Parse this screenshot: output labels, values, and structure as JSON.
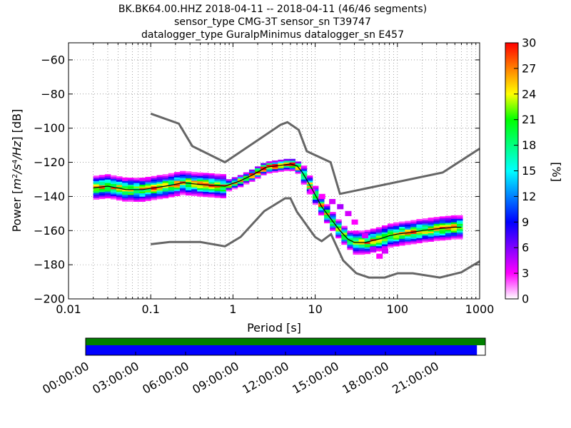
{
  "title": {
    "line1": "BK.BK64.00.HHZ   2018-04-11 -- 2018-04-11  (46/46 segments)",
    "line2": "sensor_type CMG-3T sensor_sn T39747",
    "line3": "datalogger_type GuralpMinimus datalogger_sn E457"
  },
  "colors": {
    "background": "#ffffff",
    "nhnm_nlnm": "#666666",
    "mode_line": "#000000",
    "coverage_green": "#007f00",
    "coverage_blue": "#0000ff"
  },
  "chart_data": {
    "type": "heatmap",
    "xlabel": "Period [s]",
    "ylabel": "Power [m²/s⁴/Hz] [dB]",
    "xscale": "log",
    "xlim": [
      0.01,
      1000
    ],
    "ylim": [
      -200,
      -50
    ],
    "xticks": [
      {
        "v": 0.01,
        "label": "0.01"
      },
      {
        "v": 0.1,
        "label": "0.1"
      },
      {
        "v": 1,
        "label": "1"
      },
      {
        "v": 10,
        "label": "10"
      },
      {
        "v": 100,
        "label": "100"
      },
      {
        "v": 1000,
        "label": "1000"
      }
    ],
    "yticks": [
      -200,
      -180,
      -160,
      -140,
      -120,
      -100,
      -80,
      -60
    ],
    "grid": "dotted",
    "colorbar": {
      "label": "[%]",
      "min": 0,
      "max": 30,
      "ticks": [
        0,
        3,
        6,
        9,
        12,
        15,
        18,
        21,
        24,
        27,
        30
      ]
    },
    "nhnm": [
      [
        0.1,
        -91.5
      ],
      [
        0.22,
        -97.4
      ],
      [
        0.32,
        -110.5
      ],
      [
        0.8,
        -120
      ],
      [
        3.8,
        -98
      ],
      [
        4.6,
        -96.5
      ],
      [
        6.3,
        -101
      ],
      [
        7.9,
        -113.5
      ],
      [
        15.4,
        -120
      ],
      [
        20,
        -138.5
      ],
      [
        354.8,
        -126
      ],
      [
        1000,
        -112
      ]
    ],
    "nlnm": [
      [
        0.1,
        -168
      ],
      [
        0.17,
        -166.7
      ],
      [
        0.4,
        -166.7
      ],
      [
        0.8,
        -169.2
      ],
      [
        1.24,
        -163.7
      ],
      [
        2.4,
        -148.6
      ],
      [
        4.3,
        -141.1
      ],
      [
        5,
        -141.1
      ],
      [
        6,
        -149
      ],
      [
        10,
        -163.8
      ],
      [
        12,
        -166.2
      ],
      [
        15.6,
        -162.1
      ],
      [
        21.9,
        -177.5
      ],
      [
        31.6,
        -185
      ],
      [
        45,
        -187.5
      ],
      [
        70,
        -187.5
      ],
      [
        101,
        -185
      ],
      [
        154,
        -185
      ],
      [
        328,
        -187.5
      ],
      [
        600,
        -184.4
      ],
      [
        1000,
        -178
      ]
    ],
    "mode": [
      [
        0.02,
        -135
      ],
      [
        0.03,
        -134
      ],
      [
        0.05,
        -136
      ],
      [
        0.08,
        -136
      ],
      [
        0.15,
        -134
      ],
      [
        0.25,
        -132
      ],
      [
        0.4,
        -133
      ],
      [
        0.8,
        -134
      ],
      [
        1.2,
        -131
      ],
      [
        1.8,
        -127
      ],
      [
        2.5,
        -123
      ],
      [
        3.5,
        -122
      ],
      [
        5,
        -121
      ],
      [
        6,
        -122
      ],
      [
        7,
        -126
      ],
      [
        9,
        -135
      ],
      [
        12,
        -146
      ],
      [
        16,
        -154
      ],
      [
        20,
        -160
      ],
      [
        25,
        -165
      ],
      [
        30,
        -167
      ],
      [
        40,
        -167
      ],
      [
        60,
        -165
      ],
      [
        80,
        -163
      ],
      [
        100,
        -162
      ],
      [
        150,
        -161
      ],
      [
        200,
        -160
      ],
      [
        300,
        -159
      ],
      [
        500,
        -158
      ],
      [
        600,
        -158
      ]
    ],
    "sparse_branch": [
      [
        9,
        -137
      ],
      [
        12,
        -140
      ],
      [
        16,
        -143
      ],
      [
        20,
        -146
      ],
      [
        25,
        -150
      ],
      [
        30,
        -155
      ],
      [
        40,
        -163
      ],
      [
        50,
        -171
      ],
      [
        60,
        -175
      ],
      [
        70,
        -172
      ]
    ]
  },
  "coverage": {
    "time_ticks": [
      "00:00:00",
      "03:00:00",
      "06:00:00",
      "09:00:00",
      "12:00:00",
      "15:00:00",
      "18:00:00",
      "21:00:00"
    ],
    "data_fraction": 0.979
  }
}
